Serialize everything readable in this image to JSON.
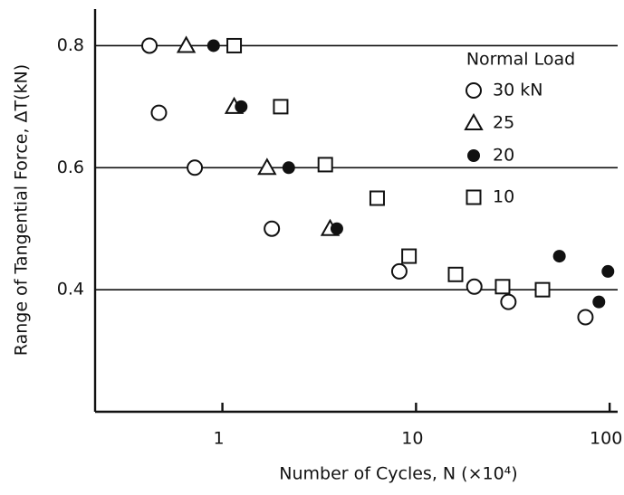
{
  "chart_data": {
    "type": "scatter",
    "xlabel": "Number of Cycles, N (×10⁴)",
    "ylabel": "Range of Tangential Force, ΔT(kN)",
    "legend_title": "Normal Load",
    "xscale": "log",
    "xlim": [
      0.22,
      110
    ],
    "xticks": [
      1,
      10,
      100
    ],
    "ylim": [
      0.2,
      0.86
    ],
    "yticks": [
      0.4,
      0.6,
      0.8
    ],
    "grid": true,
    "legend": "upper right",
    "series": [
      {
        "name": "30 kN",
        "color": "#111111",
        "marker": "circle",
        "x": [
          0.42,
          0.47,
          0.72,
          1.8,
          8.2,
          20,
          30,
          75
        ],
        "values": [
          0.8,
          0.69,
          0.6,
          0.5,
          0.43,
          0.405,
          0.38,
          0.355
        ]
      },
      {
        "name": "25",
        "color": "#111111",
        "marker": "triangle",
        "x": [
          0.65,
          1.15,
          1.7,
          3.6
        ],
        "values": [
          0.8,
          0.7,
          0.6,
          0.5
        ]
      },
      {
        "name": "20",
        "color": "#111111",
        "marker": "dot",
        "x": [
          0.9,
          1.25,
          2.2,
          3.9,
          55,
          88,
          98
        ],
        "values": [
          0.8,
          0.7,
          0.6,
          0.5,
          0.455,
          0.38,
          0.43
        ]
      },
      {
        "name": "10",
        "color": "#111111",
        "marker": "square",
        "x": [
          1.15,
          2.0,
          3.4,
          6.3,
          9.2,
          16,
          28,
          45
        ],
        "values": [
          0.8,
          0.7,
          0.605,
          0.55,
          0.455,
          0.425,
          0.405,
          0.4
        ]
      }
    ]
  }
}
